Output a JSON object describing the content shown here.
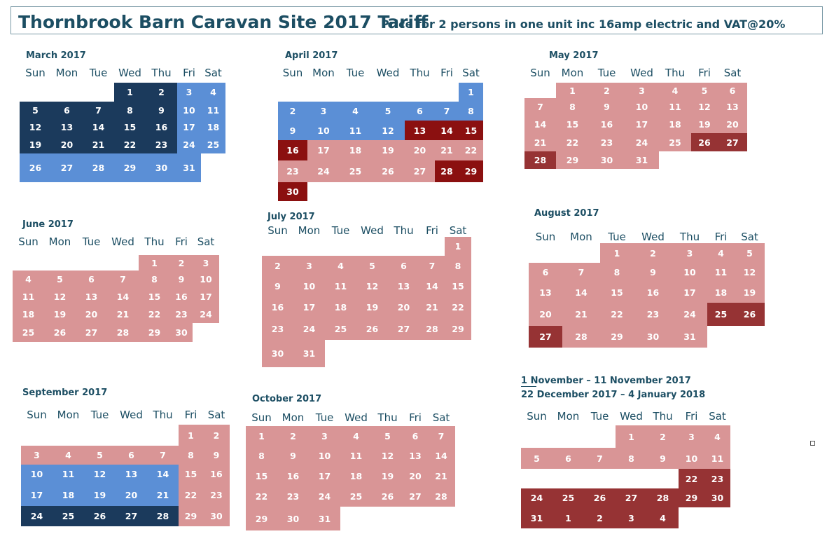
{
  "header": {
    "title": "Thornbrook Barn Caravan Site 2017 Tariff",
    "subtitle": "Price for 2 persons in one unit inc 16amp electric and VAT@20%"
  },
  "colors": {
    "navy": "#1b3a5c",
    "blue": "#5b8fd6",
    "pink": "#d99596",
    "red": "#8b1010",
    "rust": "#963334"
  },
  "days": [
    "Sun",
    "Mon",
    "Tue",
    "Wed",
    "Thu",
    "Fri",
    "Sat"
  ],
  "months": [
    {
      "id": "march",
      "title": "March 2017",
      "offset": 3,
      "cells": [
        [
          "1",
          "navy"
        ],
        [
          "2",
          "navy"
        ],
        [
          "3",
          "blue"
        ],
        [
          "4",
          "blue"
        ],
        [
          "5",
          "navy"
        ],
        [
          "6",
          "navy"
        ],
        [
          "7",
          "navy"
        ],
        [
          "8",
          "navy"
        ],
        [
          "9",
          "navy"
        ],
        [
          "10",
          "blue"
        ],
        [
          "11",
          "blue"
        ],
        [
          "12",
          "navy"
        ],
        [
          "13",
          "navy"
        ],
        [
          "14",
          "navy"
        ],
        [
          "15",
          "navy"
        ],
        [
          "16",
          "navy"
        ],
        [
          "17",
          "blue"
        ],
        [
          "18",
          "blue"
        ],
        [
          "19",
          "navy"
        ],
        [
          "20",
          "navy"
        ],
        [
          "21",
          "navy"
        ],
        [
          "22",
          "navy"
        ],
        [
          "23",
          "navy"
        ],
        [
          "24",
          "blue"
        ],
        [
          "25",
          "blue"
        ],
        [
          "26",
          "blue"
        ],
        [
          "27",
          "blue"
        ],
        [
          "28",
          "blue"
        ],
        [
          "29",
          "blue"
        ],
        [
          "30",
          "blue"
        ],
        [
          "31",
          "blue"
        ]
      ]
    },
    {
      "id": "april",
      "title": "April 2017",
      "offset": 6,
      "cells": [
        [
          "1",
          "blue"
        ],
        [
          "2",
          "blue"
        ],
        [
          "3",
          "blue"
        ],
        [
          "4",
          "blue"
        ],
        [
          "5",
          "blue"
        ],
        [
          "6",
          "blue"
        ],
        [
          "7",
          "blue"
        ],
        [
          "8",
          "blue"
        ],
        [
          "9",
          "blue"
        ],
        [
          "10",
          "blue"
        ],
        [
          "11",
          "blue"
        ],
        [
          "12",
          "blue"
        ],
        [
          "13",
          "red"
        ],
        [
          "14",
          "red"
        ],
        [
          "15",
          "red"
        ],
        [
          "16",
          "red"
        ],
        [
          "17",
          "pink"
        ],
        [
          "18",
          "pink"
        ],
        [
          "19",
          "pink"
        ],
        [
          "20",
          "pink"
        ],
        [
          "21",
          "pink"
        ],
        [
          "22",
          "pink"
        ],
        [
          "23",
          "pink"
        ],
        [
          "24",
          "pink"
        ],
        [
          "25",
          "pink"
        ],
        [
          "26",
          "pink"
        ],
        [
          "27",
          "pink"
        ],
        [
          "28",
          "red"
        ],
        [
          "29",
          "red"
        ],
        [
          "30",
          "red"
        ]
      ]
    },
    {
      "id": "may",
      "title": "May 2017",
      "offset": 1,
      "cells": [
        [
          "1",
          "pink"
        ],
        [
          "2",
          "pink"
        ],
        [
          "3",
          "pink"
        ],
        [
          "4",
          "pink"
        ],
        [
          "5",
          "pink"
        ],
        [
          "6",
          "pink"
        ],
        [
          "7",
          "pink"
        ],
        [
          "8",
          "pink"
        ],
        [
          "9",
          "pink"
        ],
        [
          "10",
          "pink"
        ],
        [
          "11",
          "pink"
        ],
        [
          "12",
          "pink"
        ],
        [
          "13",
          "pink"
        ],
        [
          "14",
          "pink"
        ],
        [
          "15",
          "pink"
        ],
        [
          "16",
          "pink"
        ],
        [
          "17",
          "pink"
        ],
        [
          "18",
          "pink"
        ],
        [
          "19",
          "pink"
        ],
        [
          "20",
          "pink"
        ],
        [
          "21",
          "pink"
        ],
        [
          "22",
          "pink"
        ],
        [
          "23",
          "pink"
        ],
        [
          "24",
          "pink"
        ],
        [
          "25",
          "pink"
        ],
        [
          "26",
          "rust"
        ],
        [
          "27",
          "rust"
        ],
        [
          "28",
          "rust"
        ],
        [
          "29",
          "pink"
        ],
        [
          "30",
          "pink"
        ],
        [
          "31",
          "pink"
        ]
      ]
    },
    {
      "id": "june",
      "title": "June 2017",
      "offset": 4,
      "cells": [
        [
          "1",
          "pink"
        ],
        [
          "2",
          "pink"
        ],
        [
          "3",
          "pink"
        ],
        [
          "4",
          "pink"
        ],
        [
          "5",
          "pink"
        ],
        [
          "6",
          "pink"
        ],
        [
          "7",
          "pink"
        ],
        [
          "8",
          "pink"
        ],
        [
          "9",
          "pink"
        ],
        [
          "10",
          "pink"
        ],
        [
          "11",
          "pink"
        ],
        [
          "12",
          "pink"
        ],
        [
          "13",
          "pink"
        ],
        [
          "14",
          "pink"
        ],
        [
          "15",
          "pink"
        ],
        [
          "16",
          "pink"
        ],
        [
          "17",
          "pink"
        ],
        [
          "18",
          "pink"
        ],
        [
          "19",
          "pink"
        ],
        [
          "20",
          "pink"
        ],
        [
          "21",
          "pink"
        ],
        [
          "22",
          "pink"
        ],
        [
          "23",
          "pink"
        ],
        [
          "24",
          "pink"
        ],
        [
          "25",
          "pink"
        ],
        [
          "26",
          "pink"
        ],
        [
          "27",
          "pink"
        ],
        [
          "28",
          "pink"
        ],
        [
          "29",
          "pink"
        ],
        [
          "30",
          "pink"
        ]
      ]
    },
    {
      "id": "july",
      "title": "July 2017",
      "offset": 6,
      "cells": [
        [
          "1",
          "pink"
        ],
        [
          "2",
          "pink"
        ],
        [
          "3",
          "pink"
        ],
        [
          "4",
          "pink"
        ],
        [
          "5",
          "pink"
        ],
        [
          "6",
          "pink"
        ],
        [
          "7",
          "pink"
        ],
        [
          "8",
          "pink"
        ],
        [
          "9",
          "pink"
        ],
        [
          "10",
          "pink"
        ],
        [
          "11",
          "pink"
        ],
        [
          "12",
          "pink"
        ],
        [
          "13",
          "pink"
        ],
        [
          "14",
          "pink"
        ],
        [
          "15",
          "pink"
        ],
        [
          "16",
          "pink"
        ],
        [
          "17",
          "pink"
        ],
        [
          "18",
          "pink"
        ],
        [
          "19",
          "pink"
        ],
        [
          "20",
          "pink"
        ],
        [
          "21",
          "pink"
        ],
        [
          "22",
          "pink"
        ],
        [
          "23",
          "pink"
        ],
        [
          "24",
          "pink"
        ],
        [
          "25",
          "pink"
        ],
        [
          "26",
          "pink"
        ],
        [
          "27",
          "pink"
        ],
        [
          "28",
          "pink"
        ],
        [
          "29",
          "pink"
        ],
        [
          "30",
          "pink"
        ],
        [
          "31",
          "pink"
        ]
      ]
    },
    {
      "id": "august",
      "title": "August 2017",
      "offset": 2,
      "cells": [
        [
          "1",
          "pink"
        ],
        [
          "2",
          "pink"
        ],
        [
          "3",
          "pink"
        ],
        [
          "4",
          "pink"
        ],
        [
          "5",
          "pink"
        ],
        [
          "6",
          "pink"
        ],
        [
          "7",
          "pink"
        ],
        [
          "8",
          "pink"
        ],
        [
          "9",
          "pink"
        ],
        [
          "10",
          "pink"
        ],
        [
          "11",
          "pink"
        ],
        [
          "12",
          "pink"
        ],
        [
          "13",
          "pink"
        ],
        [
          "14",
          "pink"
        ],
        [
          "15",
          "pink"
        ],
        [
          "16",
          "pink"
        ],
        [
          "17",
          "pink"
        ],
        [
          "18",
          "pink"
        ],
        [
          "19",
          "pink"
        ],
        [
          "20",
          "pink"
        ],
        [
          "21",
          "pink"
        ],
        [
          "22",
          "pink"
        ],
        [
          "23",
          "pink"
        ],
        [
          "24",
          "pink"
        ],
        [
          "25",
          "rust"
        ],
        [
          "26",
          "rust"
        ],
        [
          "27",
          "rust"
        ],
        [
          "28",
          "pink"
        ],
        [
          "29",
          "pink"
        ],
        [
          "30",
          "pink"
        ],
        [
          "31",
          "pink"
        ]
      ]
    },
    {
      "id": "september",
      "title": "September 2017",
      "offset": 5,
      "cells": [
        [
          "1",
          "pink"
        ],
        [
          "2",
          "pink"
        ],
        [
          "3",
          "pink"
        ],
        [
          "4",
          "pink"
        ],
        [
          "5",
          "pink"
        ],
        [
          "6",
          "pink"
        ],
        [
          "7",
          "pink"
        ],
        [
          "8",
          "pink"
        ],
        [
          "9",
          "pink"
        ],
        [
          "10",
          "blue"
        ],
        [
          "11",
          "blue"
        ],
        [
          "12",
          "blue"
        ],
        [
          "13",
          "blue"
        ],
        [
          "14",
          "blue"
        ],
        [
          "15",
          "pink"
        ],
        [
          "16",
          "pink"
        ],
        [
          "17",
          "blue"
        ],
        [
          "18",
          "blue"
        ],
        [
          "19",
          "blue"
        ],
        [
          "20",
          "blue"
        ],
        [
          "21",
          "blue"
        ],
        [
          "22",
          "pink"
        ],
        [
          "23",
          "pink"
        ],
        [
          "24",
          "navy"
        ],
        [
          "25",
          "navy"
        ],
        [
          "26",
          "navy"
        ],
        [
          "27",
          "navy"
        ],
        [
          "28",
          "navy"
        ],
        [
          "29",
          "pink"
        ],
        [
          "30",
          "pink"
        ]
      ]
    },
    {
      "id": "october",
      "title": "October 2017",
      "offset": 0,
      "cells": [
        [
          "1",
          "pink"
        ],
        [
          "2",
          "pink"
        ],
        [
          "3",
          "pink"
        ],
        [
          "4",
          "pink"
        ],
        [
          "5",
          "pink"
        ],
        [
          "6",
          "pink"
        ],
        [
          "7",
          "pink"
        ],
        [
          "8",
          "pink"
        ],
        [
          "9",
          "pink"
        ],
        [
          "10",
          "pink"
        ],
        [
          "11",
          "pink"
        ],
        [
          "12",
          "pink"
        ],
        [
          "13",
          "pink"
        ],
        [
          "14",
          "pink"
        ],
        [
          "15",
          "pink"
        ],
        [
          "16",
          "pink"
        ],
        [
          "17",
          "pink"
        ],
        [
          "18",
          "pink"
        ],
        [
          "19",
          "pink"
        ],
        [
          "20",
          "pink"
        ],
        [
          "21",
          "pink"
        ],
        [
          "22",
          "pink"
        ],
        [
          "23",
          "pink"
        ],
        [
          "24",
          "pink"
        ],
        [
          "25",
          "pink"
        ],
        [
          "26",
          "pink"
        ],
        [
          "27",
          "pink"
        ],
        [
          "28",
          "pink"
        ],
        [
          "29",
          "pink"
        ],
        [
          "30",
          "pink"
        ],
        [
          "31",
          "pink"
        ]
      ]
    },
    {
      "id": "novdec",
      "title": "",
      "range1": "1 November – 11 November 2017",
      "range2": "22 December 2017 – 4 January 2018",
      "offset": 3,
      "cells": [
        [
          "1",
          "pink"
        ],
        [
          "2",
          "pink"
        ],
        [
          "3",
          "pink"
        ],
        [
          "4",
          "pink"
        ],
        [
          "5",
          "pink"
        ],
        [
          "6",
          "pink"
        ],
        [
          "7",
          "pink"
        ],
        [
          "8",
          "pink"
        ],
        [
          "9",
          "pink"
        ],
        [
          "10",
          "pink"
        ],
        [
          "11",
          "pink"
        ],
        [
          "",
          "none"
        ],
        [
          "",
          "none"
        ],
        [
          "",
          "none"
        ],
        [
          "",
          "none"
        ],
        [
          "",
          "none"
        ],
        [
          "22",
          "rust"
        ],
        [
          "23",
          "rust"
        ],
        [
          "24",
          "rust"
        ],
        [
          "25",
          "rust"
        ],
        [
          "26",
          "rust"
        ],
        [
          "27",
          "rust"
        ],
        [
          "28",
          "rust"
        ],
        [
          "29",
          "rust"
        ],
        [
          "30",
          "rust"
        ],
        [
          "31",
          "rust"
        ],
        [
          "1",
          "rust"
        ],
        [
          "2",
          "rust"
        ],
        [
          "3",
          "rust"
        ],
        [
          "4",
          "rust"
        ]
      ]
    }
  ]
}
